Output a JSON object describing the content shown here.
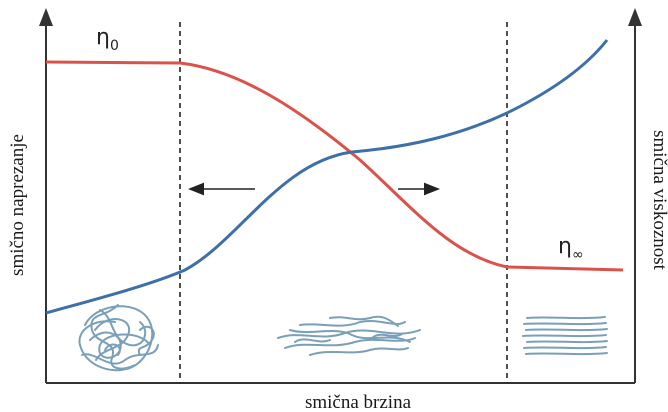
{
  "axes": {
    "x_title": "smična brzina",
    "left_title": "smično naprezanje",
    "right_title": "smična viskoznost"
  },
  "labels": {
    "eta_zero": "η",
    "eta_zero_sub": "0",
    "eta_inf": "η",
    "eta_inf_sub": "∞"
  },
  "colors": {
    "viscosity_curve": "#d9534a",
    "stress_curve": "#3d6fa8",
    "polymer_chains": "#7aa0b8",
    "axes": "#333333"
  },
  "icons": [
    "arrow-left-icon",
    "arrow-right-icon",
    "coiled-polymer-icon",
    "partially-aligned-polymer-icon",
    "aligned-polymer-icon"
  ]
}
